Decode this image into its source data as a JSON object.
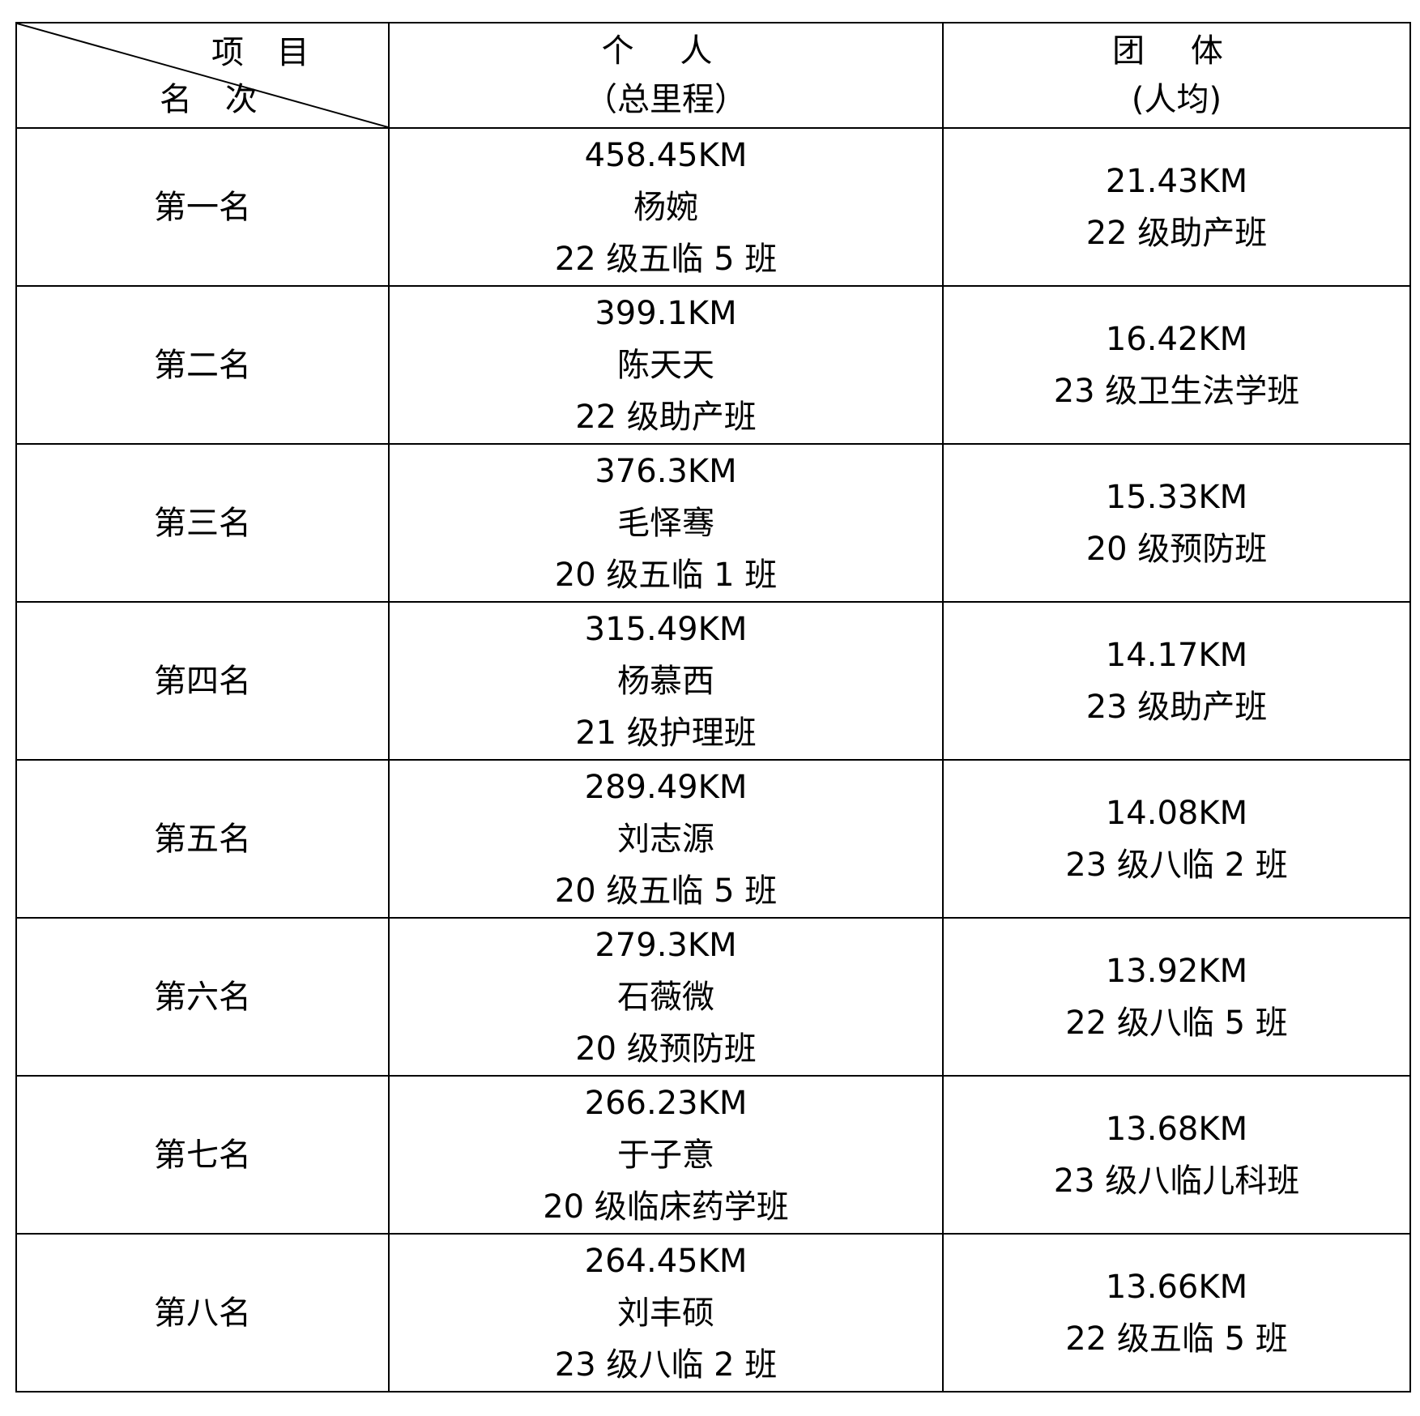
{
  "header": {
    "corner_item": "项 目",
    "corner_rank": "名 次",
    "individual": "个 人",
    "individual_sub": "（总里程）",
    "team": "团 体",
    "team_sub": "(人均)"
  },
  "rows": [
    {
      "rank": "第一名",
      "ind_km": "458.45KM",
      "ind_name": "杨婉",
      "ind_class": "22 级五临 5 班",
      "team_km": "21.43KM",
      "team_class": "22 级助产班"
    },
    {
      "rank": "第二名",
      "ind_km": "399.1KM",
      "ind_name": "陈天天",
      "ind_class": "22 级助产班",
      "team_km": "16.42KM",
      "team_class": "23 级卫生法学班"
    },
    {
      "rank": "第三名",
      "ind_km": "376.3KM",
      "ind_name": "毛怿骞",
      "ind_class": "20 级五临 1 班",
      "team_km": "15.33KM",
      "team_class": "20 级预防班"
    },
    {
      "rank": "第四名",
      "ind_km": "315.49KM",
      "ind_name": "杨慕西",
      "ind_class": "21 级护理班",
      "team_km": "14.17KM",
      "team_class": "23 级助产班"
    },
    {
      "rank": "第五名",
      "ind_km": "289.49KM",
      "ind_name": "刘志源",
      "ind_class": "20 级五临 5 班",
      "team_km": "14.08KM",
      "team_class": "23 级八临 2 班"
    },
    {
      "rank": "第六名",
      "ind_km": "279.3KM",
      "ind_name": "石薇微",
      "ind_class": "20 级预防班",
      "team_km": "13.92KM",
      "team_class": "22 级八临 5 班"
    },
    {
      "rank": "第七名",
      "ind_km": "266.23KM",
      "ind_name": "于子意",
      "ind_class": "20 级临床药学班",
      "team_km": "13.68KM",
      "team_class": "23 级八临儿科班"
    },
    {
      "rank": "第八名",
      "ind_km": "264.45KM",
      "ind_name": "刘丰硕",
      "ind_class": "23 级八临 2 班",
      "team_km": "13.66KM",
      "team_class": "22 级五临 5 班"
    }
  ]
}
